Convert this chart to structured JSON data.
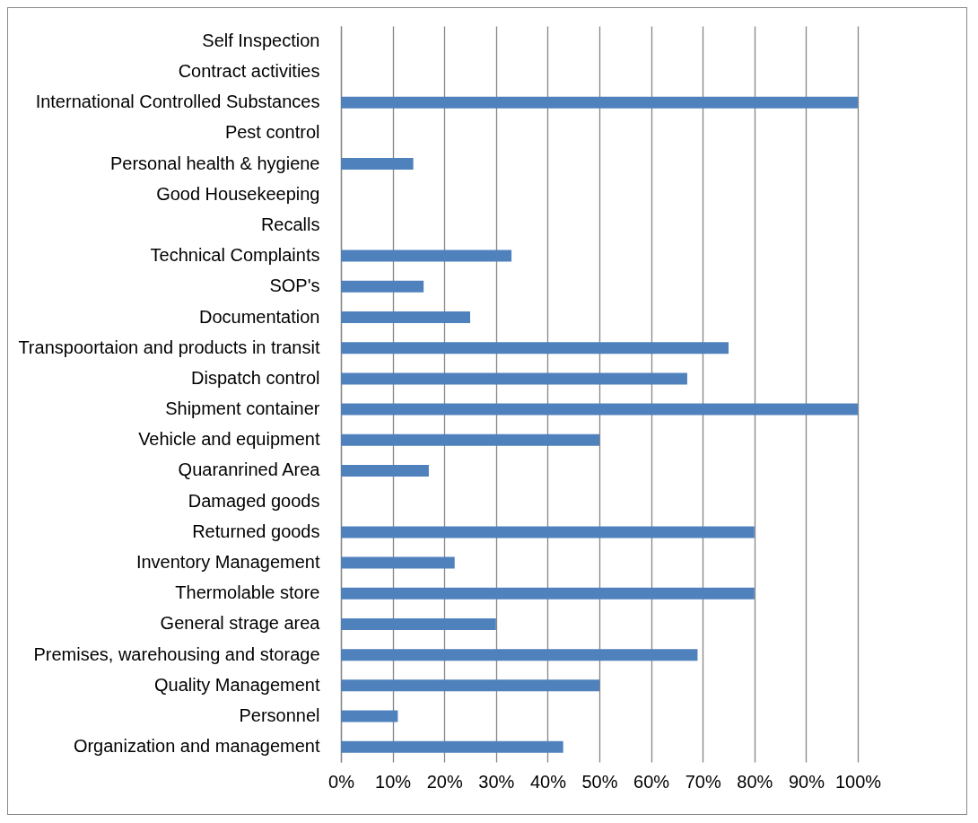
{
  "chart_data": {
    "type": "bar",
    "orientation": "horizontal",
    "categories": [
      "Self Inspection",
      "Contract activities",
      "International Controlled Substances",
      "Pest control",
      "Personal health & hygiene",
      "Good Housekeeping",
      "Recalls",
      "Technical Complaints",
      "SOP's",
      "Documentation",
      "Transpoortaion and products in transit",
      "Dispatch control",
      "Shipment container",
      "Vehicle and equipment",
      "Quaranrined Area",
      "Damaged goods",
      "Returned goods",
      "Inventory Management",
      "Thermolable store",
      "General strage area",
      "Premises, warehousing and storage",
      "Quality Management",
      "Personnel",
      "Organization and management"
    ],
    "values": [
      0,
      0,
      100,
      0,
      14,
      0,
      0,
      33,
      16,
      25,
      75,
      67,
      100,
      50,
      17,
      0,
      80,
      22,
      80,
      30,
      69,
      50,
      11,
      43
    ],
    "color": "#4f81bd",
    "xlim": [
      0,
      100
    ],
    "xticks": [
      {
        "value": 0,
        "label": "0%"
      },
      {
        "value": 10,
        "label": "10%"
      },
      {
        "value": 20,
        "label": "20%"
      },
      {
        "value": 30,
        "label": "30%"
      },
      {
        "value": 40,
        "label": "40%"
      },
      {
        "value": 50,
        "label": "50%"
      },
      {
        "value": 60,
        "label": "60%"
      },
      {
        "value": 70,
        "label": "70%"
      },
      {
        "value": 80,
        "label": "80%"
      },
      {
        "value": 90,
        "label": "90%"
      },
      {
        "value": 100,
        "label": "100%"
      }
    ],
    "grid": "x"
  }
}
